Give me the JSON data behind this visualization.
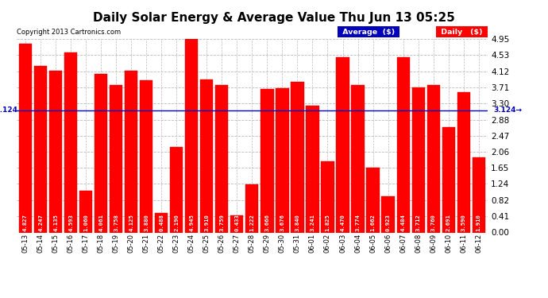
{
  "title": "Daily Solar Energy & Average Value Thu Jun 13 05:25",
  "copyright": "Copyright 2013 Cartronics.com",
  "categories": [
    "05-13",
    "05-14",
    "05-15",
    "05-16",
    "05-17",
    "05-18",
    "05-19",
    "05-20",
    "05-21",
    "05-22",
    "05-23",
    "05-24",
    "05-25",
    "05-26",
    "05-27",
    "05-28",
    "05-29",
    "05-30",
    "05-31",
    "06-01",
    "06-02",
    "06-03",
    "06-04",
    "06-05",
    "06-06",
    "06-07",
    "06-08",
    "06-09",
    "06-10",
    "06-11",
    "06-12"
  ],
  "values": [
    4.827,
    4.247,
    4.135,
    4.593,
    1.06,
    4.061,
    3.758,
    4.125,
    3.88,
    0.488,
    2.19,
    4.945,
    3.91,
    3.759,
    0.433,
    1.222,
    3.666,
    3.676,
    3.84,
    3.241,
    1.825,
    4.47,
    3.774,
    1.662,
    0.923,
    4.484,
    3.712,
    3.76,
    2.691,
    3.59,
    1.91
  ],
  "average": 3.124,
  "bar_color": "#ff0000",
  "average_line_color": "#0000bb",
  "ylim": [
    0,
    4.95
  ],
  "yticks": [
    0.0,
    0.41,
    0.82,
    1.24,
    1.65,
    2.06,
    2.47,
    2.88,
    3.3,
    3.71,
    4.12,
    4.53,
    4.95
  ],
  "background_color": "#ffffff",
  "grid_color": "#bbbbbb",
  "title_fontsize": 11,
  "bar_label_fontsize": 5.2,
  "avg_label": "3.124",
  "legend_avg_color": "#0000bb",
  "legend_daily_color": "#ff0000",
  "legend_avg_text": "Average  ($)",
  "legend_daily_text": "Daily   ($)"
}
